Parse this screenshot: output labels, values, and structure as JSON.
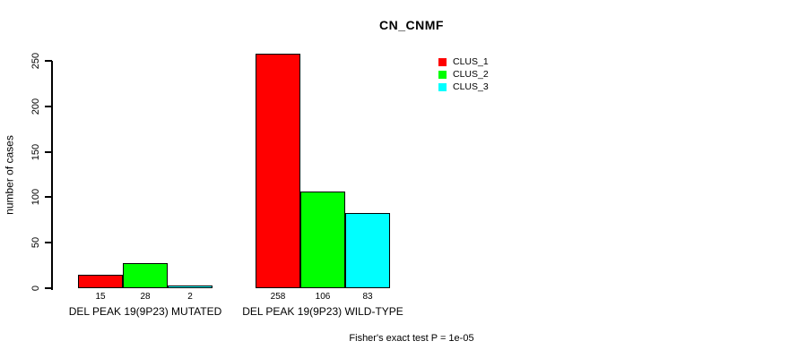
{
  "chart_data": {
    "type": "bar",
    "title": "CN_CNMF",
    "ylabel": "number of cases",
    "xlabel": "",
    "categories": [
      "DEL PEAK 19(9P23) MUTATED",
      "DEL PEAK 19(9P23) WILD-TYPE"
    ],
    "series": [
      {
        "name": "CLUS_1",
        "color": "#FF0000",
        "values": [
          15,
          258
        ]
      },
      {
        "name": "CLUS_2",
        "color": "#00FF00",
        "values": [
          28,
          106
        ]
      },
      {
        "name": "CLUS_3",
        "color": "#00FFFF",
        "values": [
          2,
          83
        ]
      }
    ],
    "yticks": [
      0,
      50,
      100,
      150,
      200,
      250
    ],
    "ylim": [
      0,
      250
    ],
    "grid": false,
    "legend_position": "top-right",
    "annotation": "Fisher's exact test P = 1e-05",
    "axis_color": "#000000",
    "background_color": "#FFFFFF"
  }
}
